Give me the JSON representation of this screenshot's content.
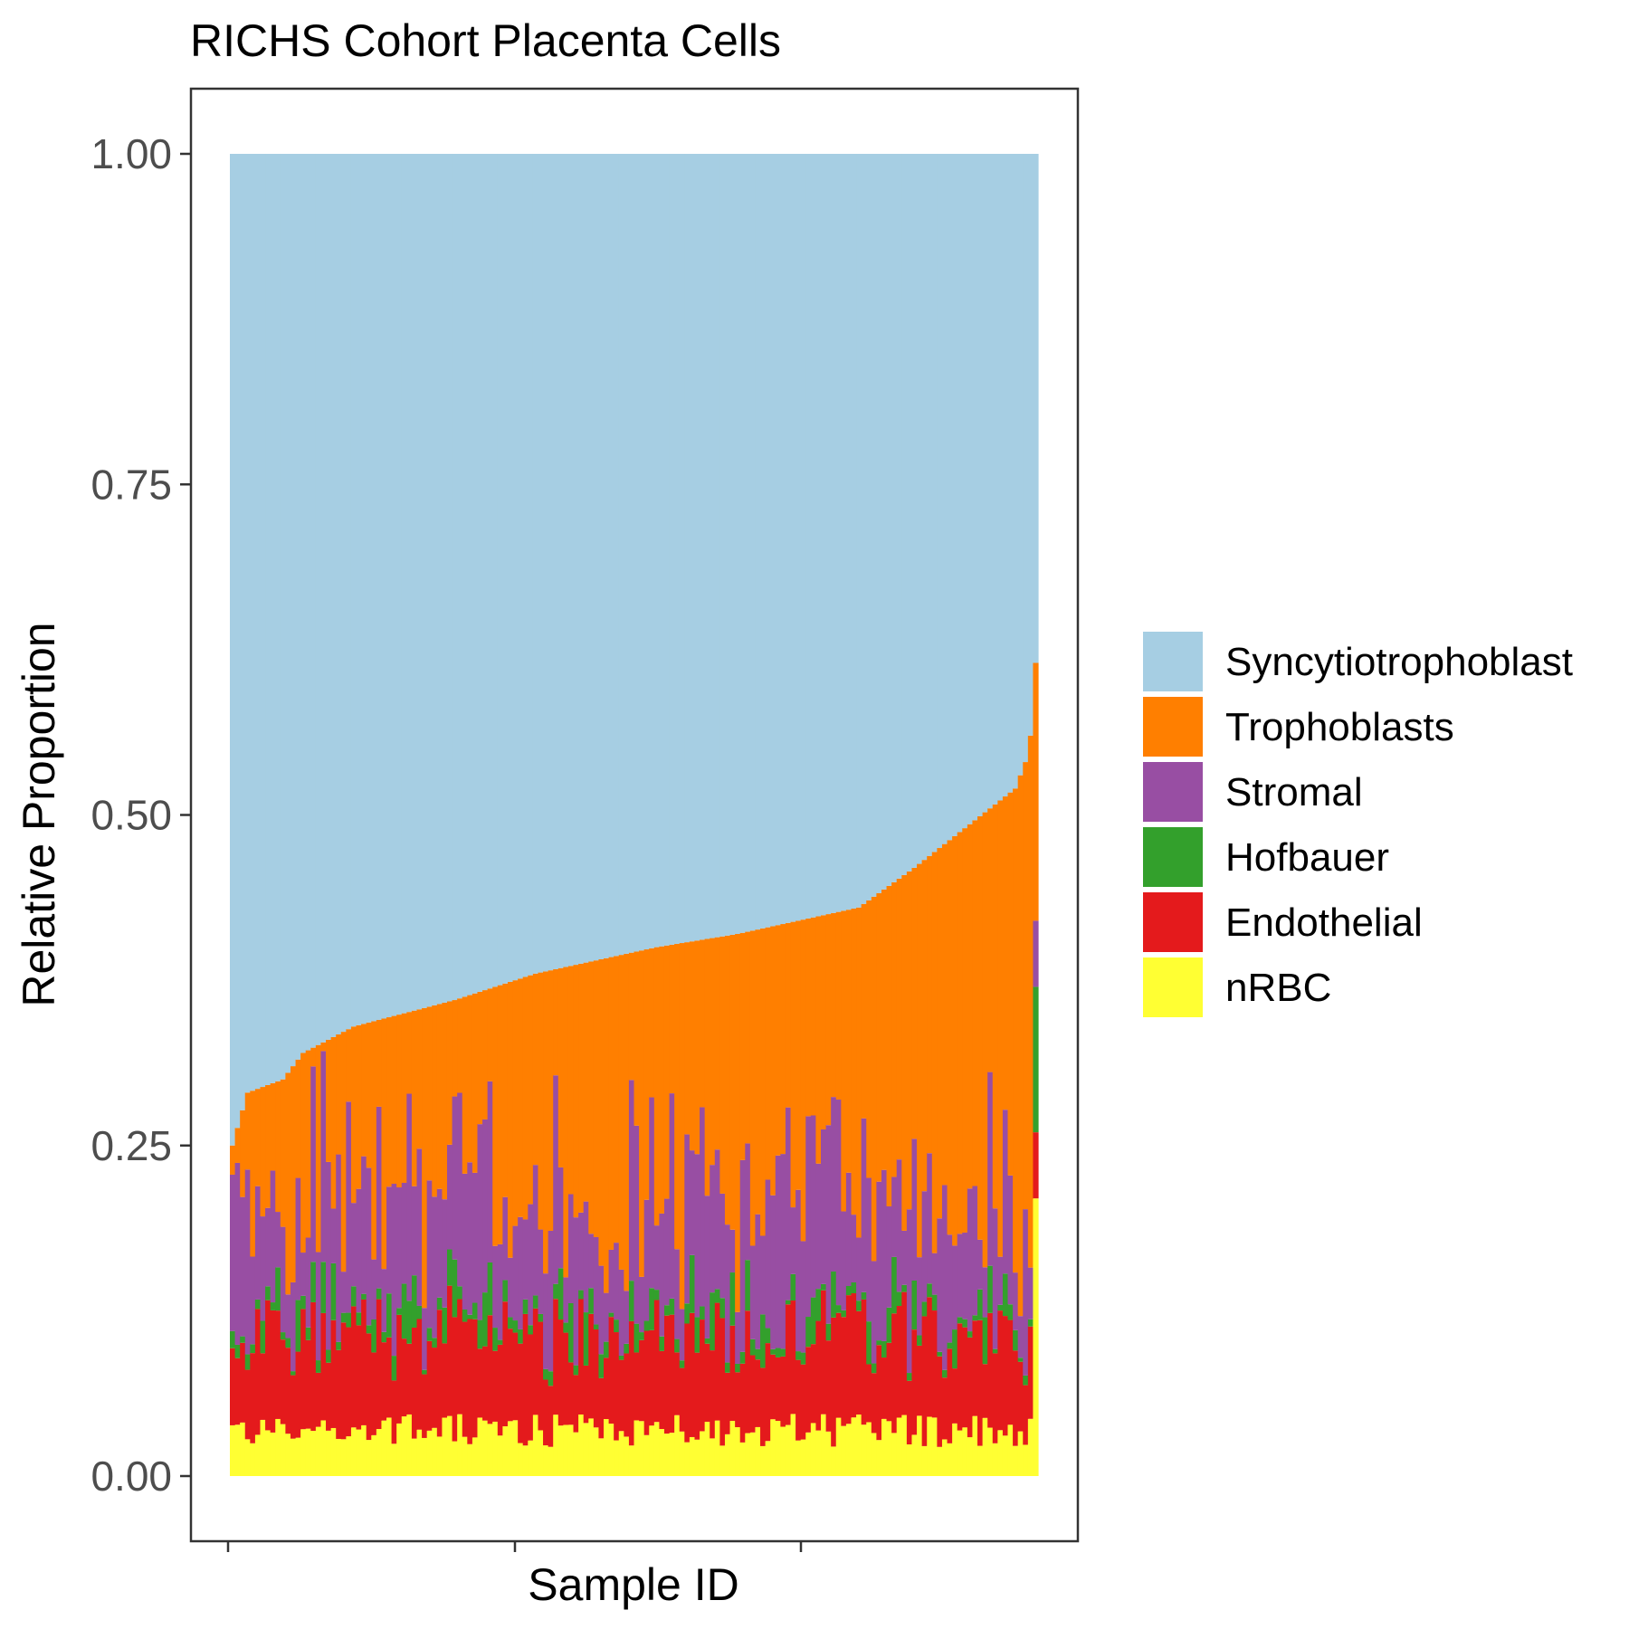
{
  "chart_data": {
    "type": "bar",
    "stacked": true,
    "title": "RICHS Cohort Placenta Cells",
    "xlabel": "Sample ID",
    "ylabel": "Relative Proportion",
    "ylim": [
      0,
      1
    ],
    "yticks": [
      "0.00",
      "0.25",
      "0.50",
      "0.75",
      "1.00"
    ],
    "ytick_values": [
      0,
      0.25,
      0.5,
      0.75,
      1.0
    ],
    "x_tick_count": 3,
    "n_samples": 160,
    "grid": false,
    "legend_position": "right",
    "series": [
      {
        "name": "nRBC",
        "color": "#FFFF33",
        "mean": 0.035
      },
      {
        "name": "Endothelial",
        "color": "#E41A1C",
        "mean": 0.07
      },
      {
        "name": "Hofbauer",
        "color": "#33A02C",
        "mean": 0.01
      },
      {
        "name": "Stromal",
        "color": "#984EA3",
        "mean": 0.07
      },
      {
        "name": "Trophoblasts",
        "color": "#FF7F00"
      },
      {
        "name": "Syncytiotrophoblast",
        "color": "#A6CEE3"
      }
    ],
    "trophoblast_cumulative_top": {
      "start": 0.25,
      "anchors": [
        [
          0,
          0.25
        ],
        [
          3,
          0.29
        ],
        [
          10,
          0.3
        ],
        [
          14,
          0.32
        ],
        [
          24,
          0.34
        ],
        [
          44,
          0.36
        ],
        [
          60,
          0.38
        ],
        [
          84,
          0.4
        ],
        [
          100,
          0.41
        ],
        [
          124,
          0.43
        ],
        [
          135,
          0.46
        ],
        [
          145,
          0.49
        ],
        [
          155,
          0.52
        ],
        [
          157,
          0.54
        ],
        [
          158,
          0.56
        ],
        [
          159,
          0.615
        ]
      ]
    },
    "legend_order": [
      "Syncytiotrophoblast",
      "Trophoblasts",
      "Stromal",
      "Hofbauer",
      "Endothelial",
      "nRBC"
    ]
  }
}
